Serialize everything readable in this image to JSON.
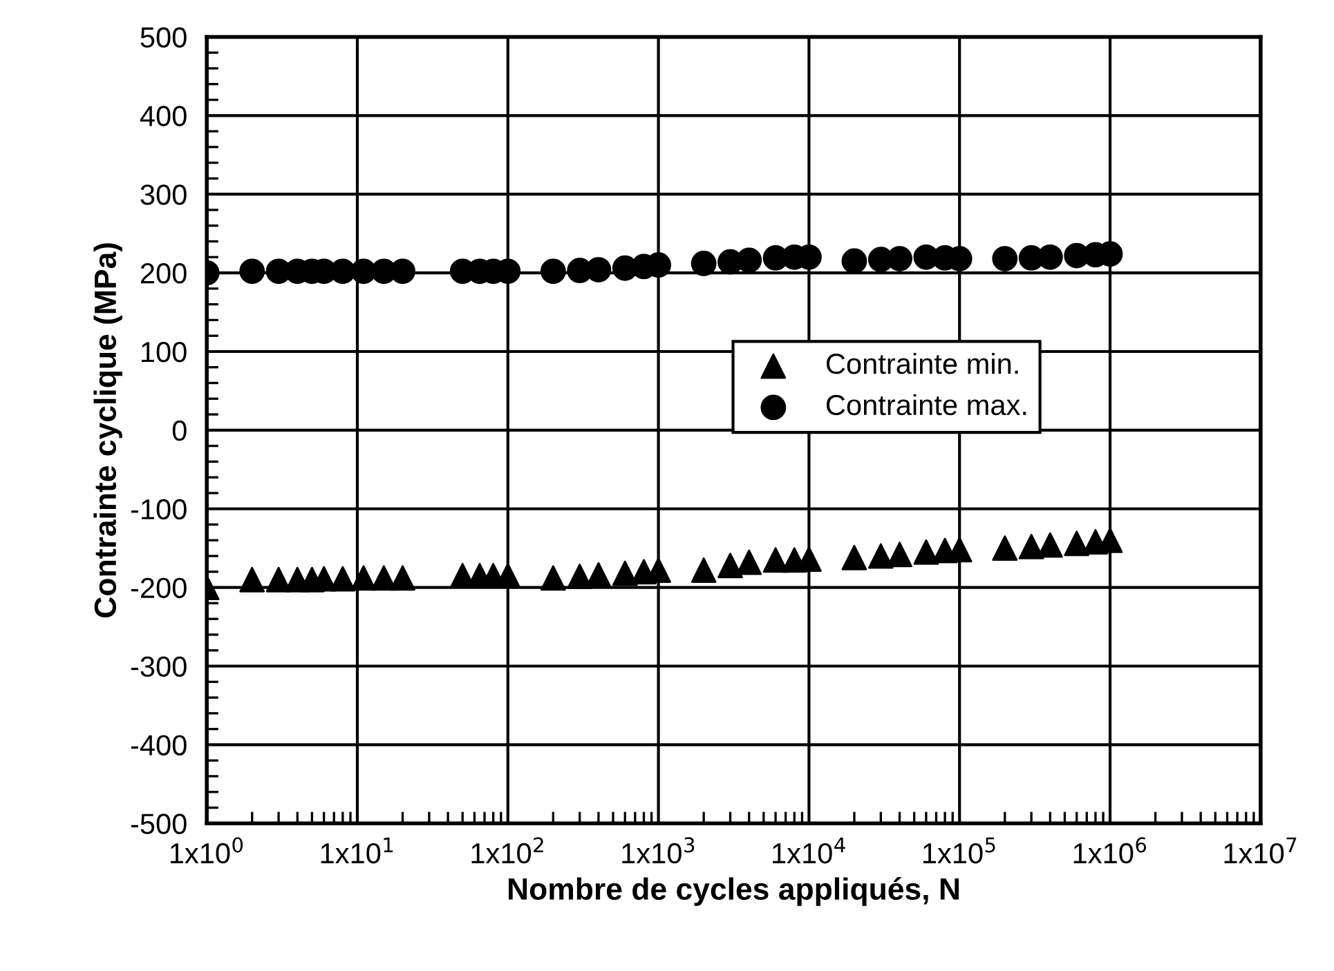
{
  "chart_data": {
    "type": "scatter",
    "xlabel": "Nombre de cycles appliqués, N",
    "ylabel": "Contrainte cyclique (MPa)",
    "log": "x",
    "grid": true,
    "legend": "center",
    "xlim": [
      1,
      10000000
    ],
    "ylim": [
      -500,
      500
    ],
    "xticks": [
      {
        "value": 1,
        "label": "1x10$^{0}$"
      },
      {
        "value": 10,
        "label": "1x10$^{1}$"
      },
      {
        "value": 100,
        "label": "1x10$^{2}$"
      },
      {
        "value": 1000,
        "label": "1x10$^{3}$"
      },
      {
        "value": 10000,
        "label": "1x10$^{4}$"
      },
      {
        "value": 100000,
        "label": "1x10$^{5}$"
      },
      {
        "value": 1000000,
        "label": "1x10$^{6}$"
      },
      {
        "value": 10000000,
        "label": "1x10$^{7}$"
      }
    ],
    "yticks": [
      -500,
      -400,
      -300,
      -200,
      -100,
      0,
      100,
      200,
      300,
      400,
      500
    ],
    "x": [
      1,
      2,
      3,
      4,
      5,
      6,
      8,
      11,
      15,
      20,
      50,
      65,
      80,
      100,
      200,
      300,
      400,
      600,
      800,
      1000,
      2000,
      3000,
      4000,
      6000,
      8000,
      10000,
      20000,
      30000,
      40000,
      60000,
      80000,
      100000,
      200000,
      300000,
      400000,
      600000,
      800000,
      1000000
    ],
    "series": [
      {
        "name": "Contrainte min.",
        "color": "#000000",
        "marker": "triangle",
        "values": [
          -200,
          -190,
          -190,
          -190,
          -190,
          -189,
          -189,
          -188,
          -188,
          -188,
          -185,
          -185,
          -185,
          -185,
          -188,
          -186,
          -184,
          -182,
          -180,
          -178,
          -178,
          -172,
          -168,
          -165,
          -165,
          -164,
          -162,
          -160,
          -158,
          -155,
          -153,
          -152,
          -150,
          -148,
          -146,
          -144,
          -142,
          -140
        ]
      },
      {
        "name": "Contrainte max.",
        "color": "#000000",
        "marker": "circle",
        "values": [
          200,
          202,
          202,
          202,
          202,
          202,
          202,
          202,
          202,
          202,
          202,
          202,
          202,
          202,
          202,
          203,
          204,
          206,
          208,
          210,
          212,
          214,
          216,
          219,
          220,
          220,
          215,
          217,
          218,
          220,
          219,
          218,
          218,
          219,
          220,
          222,
          223,
          224
        ]
      }
    ]
  }
}
